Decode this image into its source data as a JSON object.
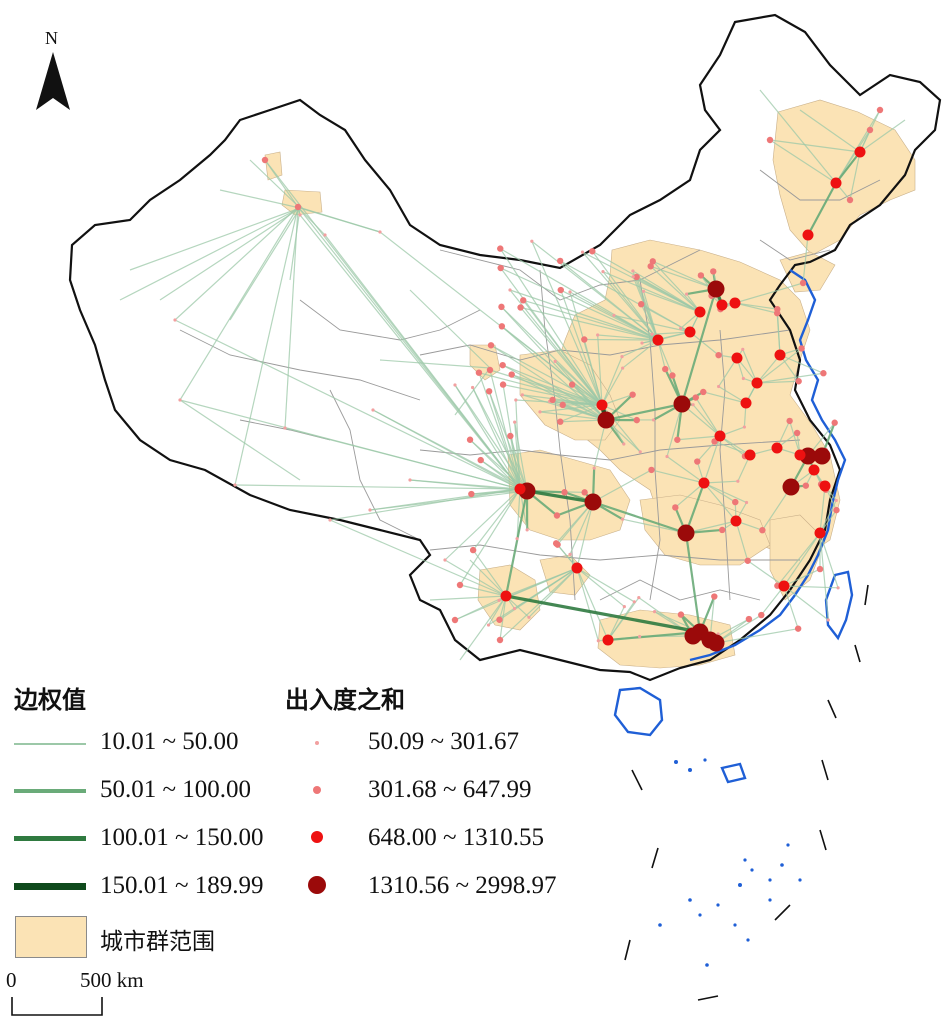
{
  "north_arrow": {
    "label": "N",
    "icon": "north-arrow-icon"
  },
  "legend": {
    "edge_title": "边权值",
    "edges": [
      {
        "label": "10.01 ~ 50.00",
        "color": "#9cc8a8"
      },
      {
        "label": "50.01 ~ 100.00",
        "color": "#6aab79"
      },
      {
        "label": "100.01 ~ 150.00",
        "color": "#2f7a40"
      },
      {
        "label": "150.01 ~ 189.99",
        "color": "#0f4a1c"
      }
    ],
    "node_title": "出入度之和",
    "nodes": [
      {
        "label": "50.09 ~ 301.67",
        "color": "#f2a0a0"
      },
      {
        "label": "301.68 ~ 647.99",
        "color": "#ee7777"
      },
      {
        "label": "648.00 ~ 1310.55",
        "color": "#ee1111"
      },
      {
        "label": "1310.56 ~ 2998.97",
        "color": "#9b0a0a"
      }
    ],
    "cluster_label": "城市群范围",
    "cluster_color": "#fbe3b5"
  },
  "scale_bar": {
    "start": "0",
    "end": "500 km"
  },
  "colors": {
    "coast": "#1f5fd6",
    "border": "#111111",
    "province": "#9a9a9a"
  }
}
